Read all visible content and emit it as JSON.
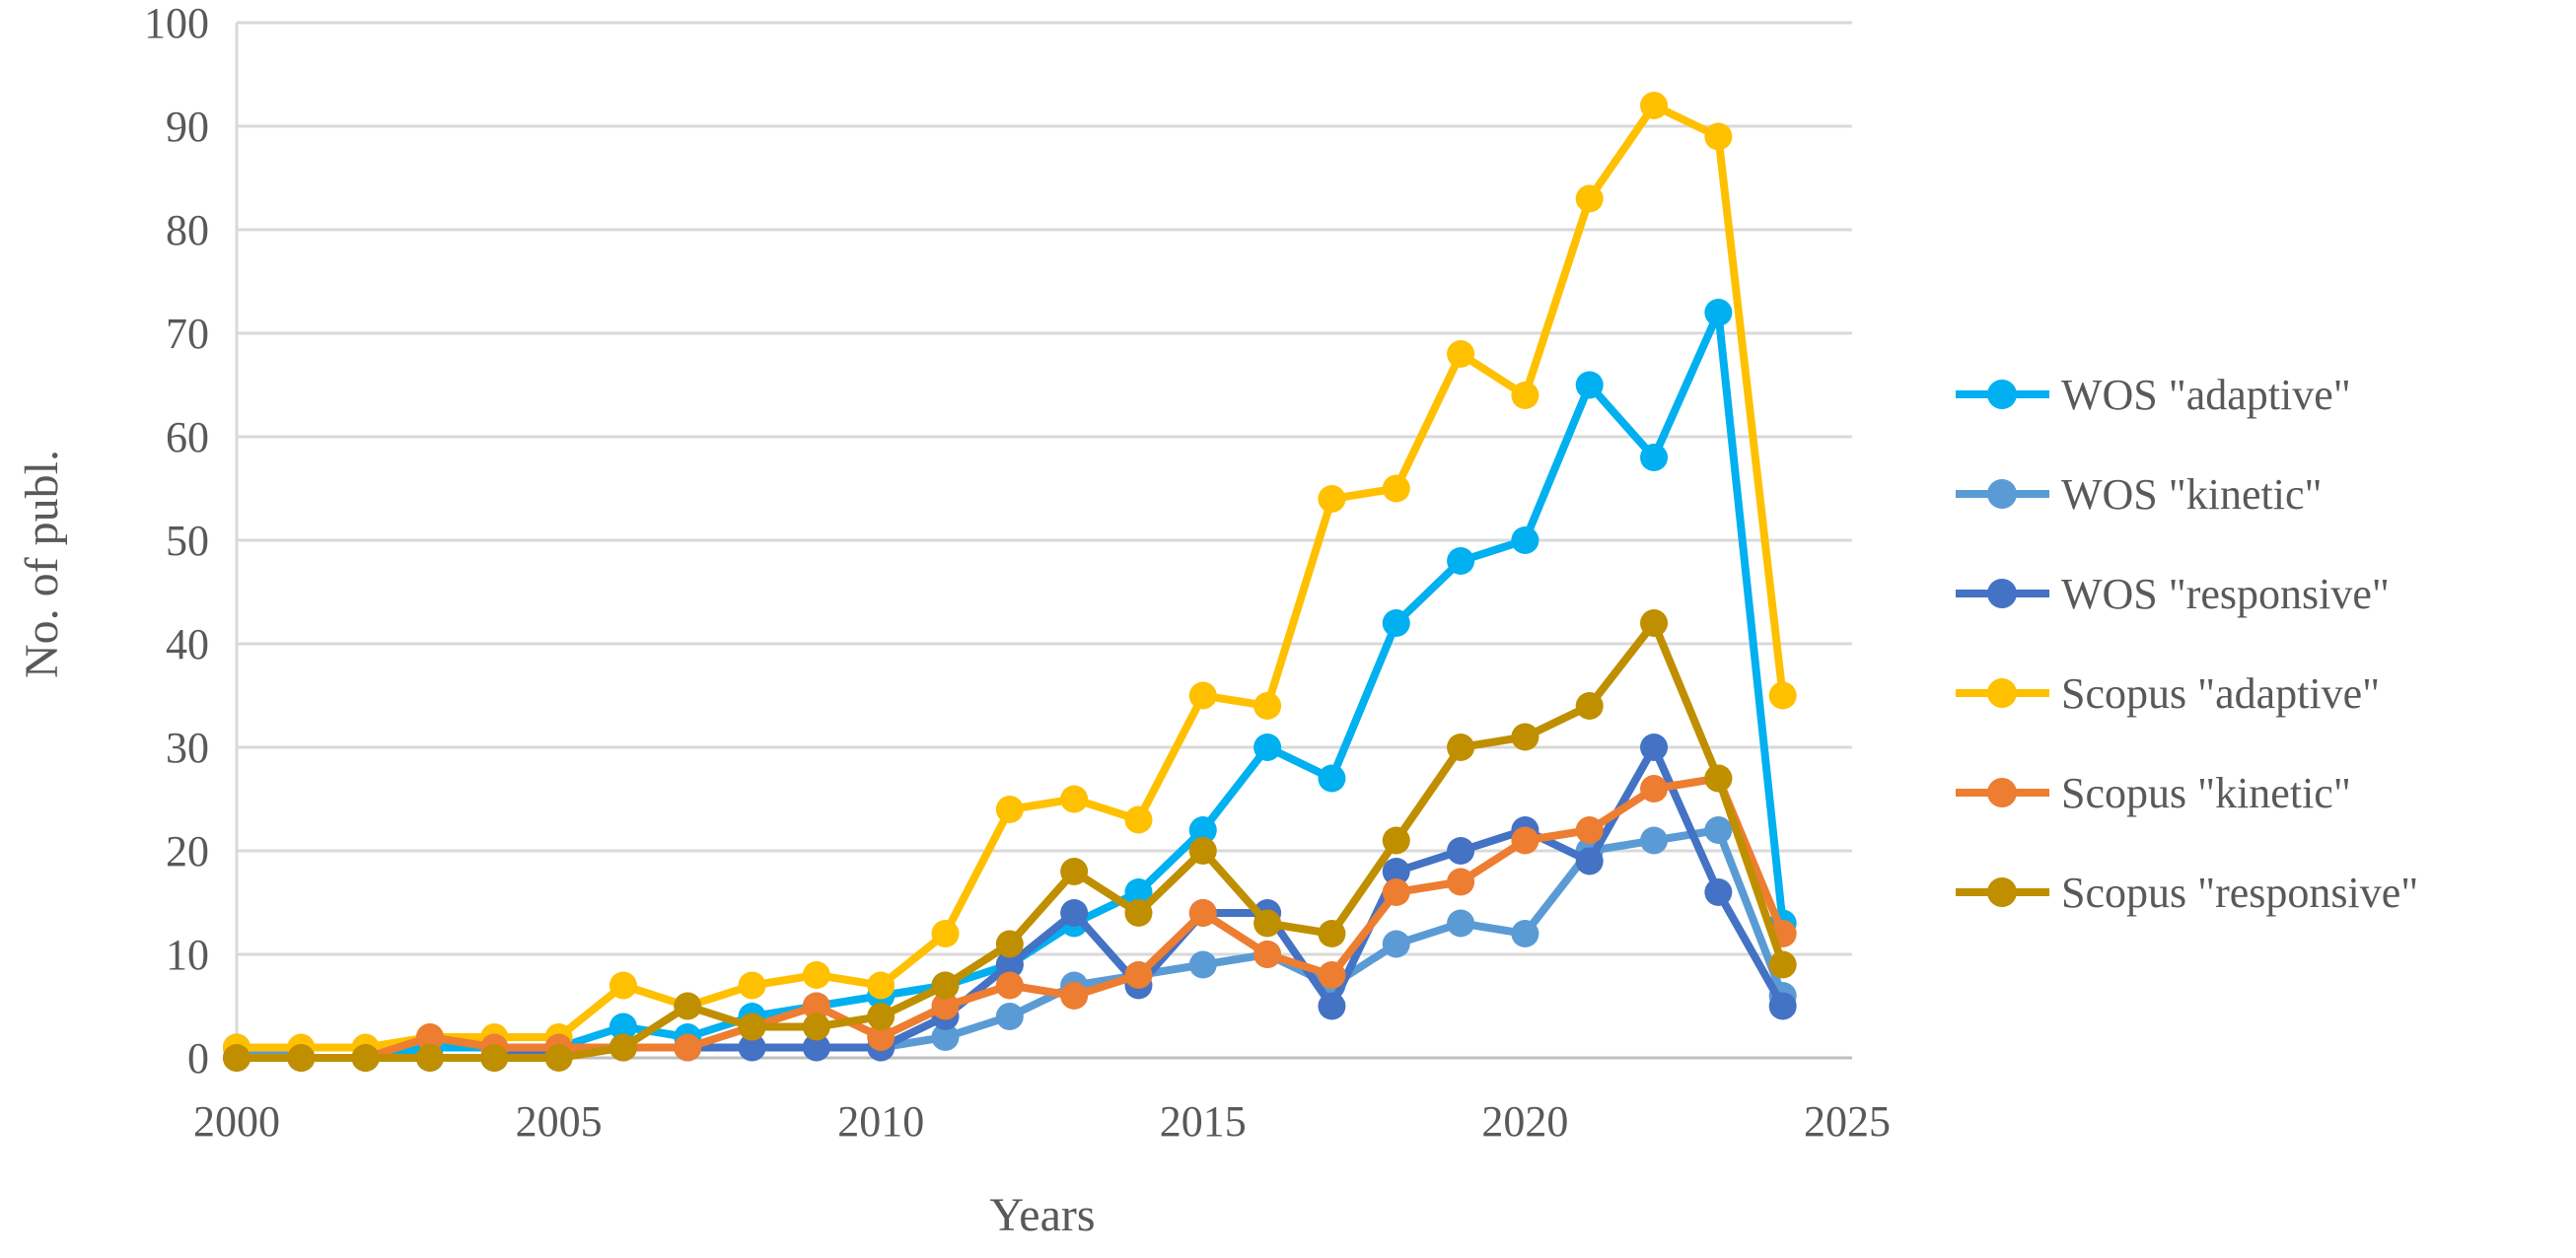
{
  "figure": {
    "background": "#FFFFFF",
    "text_color": "#595959",
    "grid_color": "#D9D9D9",
    "axis_color": "#BFBFBF"
  },
  "chart_data": {
    "type": "line",
    "title": "",
    "xlabel": "Years",
    "ylabel": "No. of publ.",
    "xlim": [
      2000,
      2025
    ],
    "ylim": [
      0,
      100
    ],
    "grid": "horizontal",
    "legend_position": "right",
    "x_ticks": [
      2000,
      2005,
      2010,
      2015,
      2020,
      2025
    ],
    "y_ticks": [
      0,
      10,
      20,
      30,
      40,
      50,
      60,
      70,
      80,
      90,
      100
    ],
    "x": [
      2000,
      2001,
      2002,
      2003,
      2004,
      2005,
      2006,
      2007,
      2008,
      2009,
      2010,
      2011,
      2012,
      2013,
      2014,
      2015,
      2016,
      2017,
      2018,
      2019,
      2020,
      2021,
      2022,
      2023,
      2024
    ],
    "series": [
      {
        "name": "WOS \"adaptive\"",
        "color": "#00B0F0",
        "values": [
          1,
          0,
          0,
          1,
          1,
          1,
          3,
          2,
          4,
          5,
          6,
          7,
          9,
          13,
          16,
          22,
          30,
          27,
          42,
          48,
          50,
          65,
          58,
          72,
          13
        ]
      },
      {
        "name": "WOS \"kinetic\"",
        "color": "#5B9BD5",
        "values": [
          1,
          0,
          0,
          0,
          0,
          1,
          1,
          1,
          1,
          1,
          1,
          2,
          4,
          7,
          8,
          9,
          10,
          7,
          11,
          13,
          12,
          20,
          21,
          22,
          6
        ]
      },
      {
        "name": "WOS \"responsive\"",
        "color": "#4472C4",
        "values": [
          0,
          0,
          0,
          0,
          0,
          1,
          1,
          1,
          1,
          1,
          1,
          4,
          9,
          14,
          7,
          14,
          14,
          5,
          18,
          20,
          22,
          19,
          30,
          16,
          5
        ]
      },
      {
        "name": "Scopus \"adaptive\"",
        "color": "#FFC000",
        "values": [
          1,
          1,
          1,
          2,
          2,
          2,
          7,
          5,
          7,
          8,
          7,
          12,
          24,
          25,
          23,
          35,
          34,
          54,
          55,
          68,
          64,
          83,
          92,
          89,
          35
        ]
      },
      {
        "name": "Scopus \"kinetic\"",
        "color": "#ED7D31",
        "values": [
          0,
          0,
          0,
          2,
          1,
          1,
          1,
          1,
          3,
          5,
          2,
          5,
          7,
          6,
          8,
          14,
          10,
          8,
          16,
          17,
          21,
          22,
          26,
          27,
          12
        ]
      },
      {
        "name": "Scopus \"responsive\"",
        "color": "#BF8F00",
        "values": [
          0,
          0,
          0,
          0,
          0,
          0,
          1,
          5,
          3,
          3,
          4,
          7,
          11,
          18,
          14,
          20,
          13,
          12,
          21,
          30,
          31,
          34,
          42,
          27,
          9
        ]
      }
    ]
  }
}
